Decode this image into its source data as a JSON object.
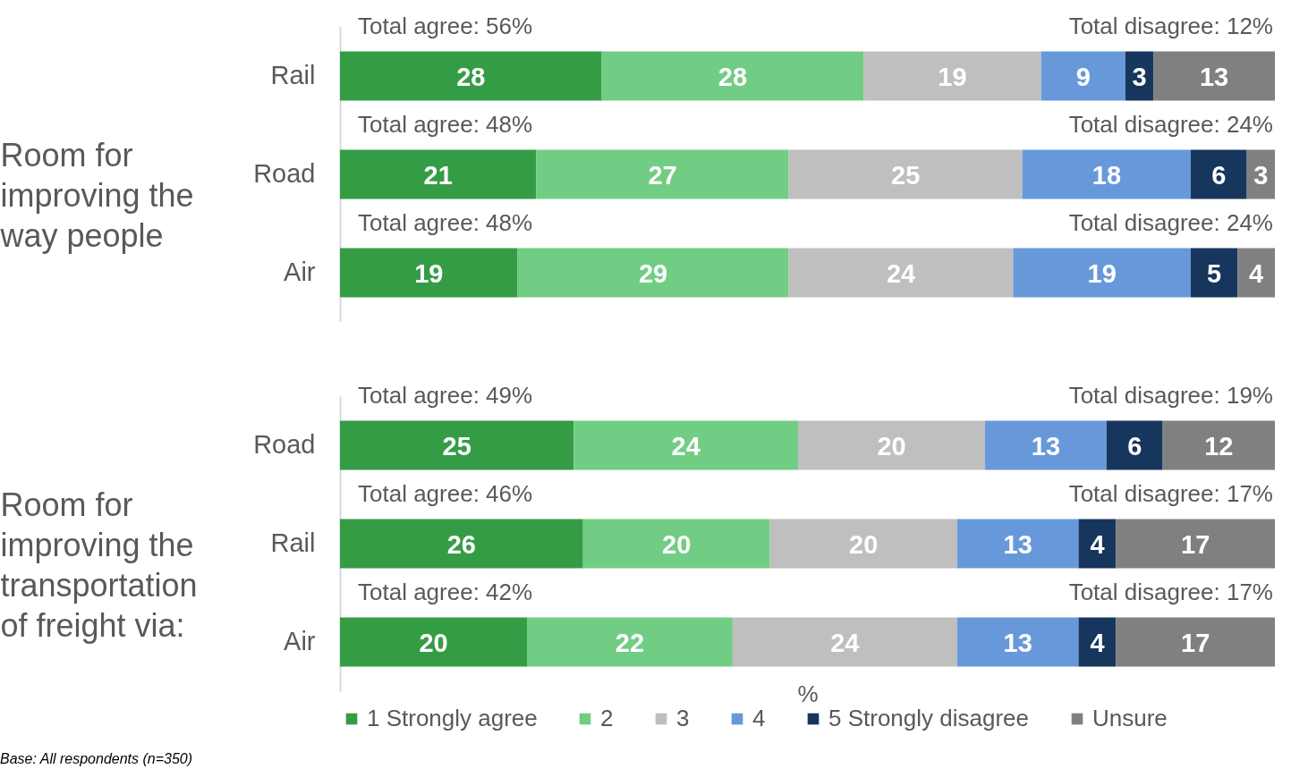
{
  "chart_data": [
    {
      "type": "bar",
      "orientation": "horizontal",
      "stacked": true,
      "ylabel": "Room for improving the way people",
      "categories": [
        "Rail",
        "Road",
        "Air"
      ],
      "xlim": [
        0,
        100
      ],
      "tick_labels": "y",
      "data_labels": true,
      "series": [
        {
          "color": "#359c46",
          "values": [
            28,
            21,
            19
          ]
        },
        {
          "color": "#72cd84",
          "values": [
            28,
            27,
            29
          ]
        },
        {
          "color": "#bfbfbf",
          "values": [
            19,
            25,
            24
          ]
        },
        {
          "color": "#6799da",
          "values": [
            9,
            18,
            19
          ]
        },
        {
          "color": "#17365d",
          "values": [
            3,
            6,
            5
          ]
        },
        {
          "color": "#808080",
          "values": [
            13,
            3,
            4
          ]
        }
      ],
      "annotations": [
        "Total agree: 56%",
        "Total disagree: 12%",
        "Total agree: 48%",
        "Total disagree: 24%",
        "Total agree: 48%",
        "Total disagree: 24%"
      ]
    },
    {
      "type": "bar",
      "orientation": "horizontal",
      "stacked": true,
      "ylabel": "Room for improving the transportation of freight via:",
      "xlabel": "%",
      "categories": [
        "Road",
        "Rail",
        "Air"
      ],
      "xlim": [
        0,
        100
      ],
      "tick_labels": "y",
      "data_labels": true,
      "legend": "bottom",
      "series": [
        {
          "name": "1 Strongly agree",
          "color": "#359c46",
          "values": [
            25,
            26,
            20
          ]
        },
        {
          "name": "2",
          "color": "#72cd84",
          "values": [
            24,
            20,
            22
          ]
        },
        {
          "name": "3",
          "color": "#bfbfbf",
          "values": [
            20,
            20,
            24
          ]
        },
        {
          "name": "4",
          "color": "#6799da",
          "values": [
            13,
            13,
            13
          ]
        },
        {
          "name": "5 Strongly disagree",
          "color": "#17365d",
          "values": [
            6,
            4,
            4
          ]
        },
        {
          "name": "Unsure",
          "color": "#808080",
          "values": [
            12,
            17,
            17
          ]
        }
      ],
      "annotations": [
        "Total agree: 49%",
        "Total disagree: 19%",
        "Total agree: 46%",
        "Total disagree: 17%",
        "Total agree: 42%",
        "Total disagree: 17%",
        "Base: All respondents (n=350)"
      ]
    }
  ]
}
